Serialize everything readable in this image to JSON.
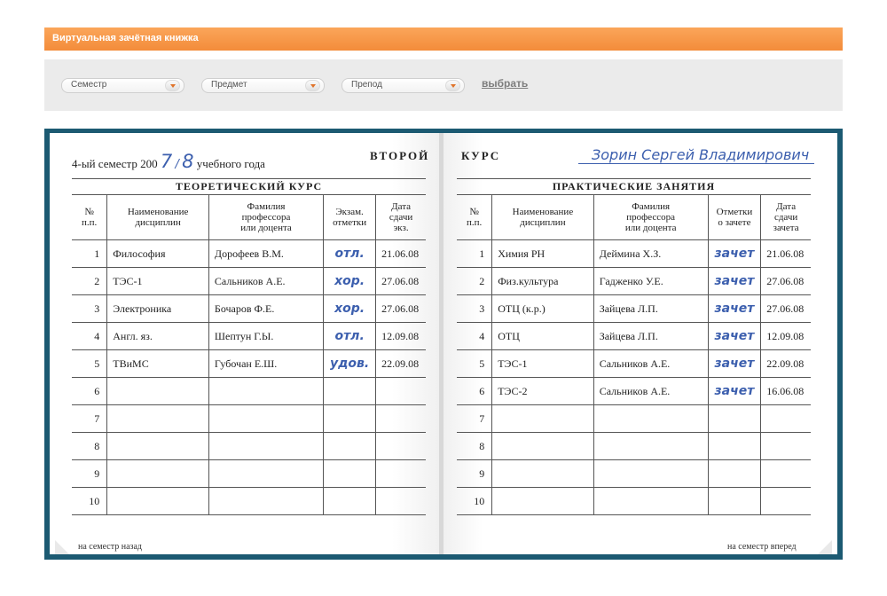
{
  "header": {
    "title": "Виртуальная зачётная книжка"
  },
  "filters": {
    "semester": "Семестр",
    "subject": "Предмет",
    "teacher": "Препод",
    "choose": "выбрать"
  },
  "book": {
    "semester_prefix": "4-ый семестр 200",
    "year_a": "7",
    "year_sep": "/",
    "year_b": "8",
    "year_suffix": "учебного года",
    "course_left": "ВТОРОЙ",
    "course_right": "КУРС",
    "student_name": "Зорин Сергей Владимирович",
    "prev_link": "на семестр назад",
    "next_link": "на семестр вперед"
  },
  "theory": {
    "section_title": "ТЕОРЕТИЧЕСКИЙ КУРС",
    "columns": [
      "№\nп.п.",
      "Наименование\nдисциплин",
      "Фамилия\nпрофессора\nили доцента",
      "Экзам.\nотметки",
      "Дата\nсдачи\nэкз."
    ],
    "rows": [
      {
        "n": "1",
        "subject": "Философия",
        "teacher": "Дорофеев В.М.",
        "mark": "отл.",
        "date": "21.06.08"
      },
      {
        "n": "2",
        "subject": "ТЭС-1",
        "teacher": "Сальников А.Е.",
        "mark": "хор.",
        "date": "27.06.08"
      },
      {
        "n": "3",
        "subject": "Электроника",
        "teacher": "Бочаров Ф.Е.",
        "mark": "хор.",
        "date": "27.06.08"
      },
      {
        "n": "4",
        "subject": "Англ. яз.",
        "teacher": "Шептун Г.Ы.",
        "mark": "отл.",
        "date": "12.09.08"
      },
      {
        "n": "5",
        "subject": "ТВиМС",
        "teacher": "Губочан Е.Ш.",
        "mark": "удов.",
        "date": "22.09.08"
      },
      {
        "n": "6",
        "subject": "",
        "teacher": "",
        "mark": "",
        "date": ""
      },
      {
        "n": "7",
        "subject": "",
        "teacher": "",
        "mark": "",
        "date": ""
      },
      {
        "n": "8",
        "subject": "",
        "teacher": "",
        "mark": "",
        "date": ""
      },
      {
        "n": "9",
        "subject": "",
        "teacher": "",
        "mark": "",
        "date": ""
      },
      {
        "n": "10",
        "subject": "",
        "teacher": "",
        "mark": "",
        "date": ""
      }
    ]
  },
  "practice": {
    "section_title": "ПРАКТИЧЕСКИЕ ЗАНЯТИЯ",
    "columns": [
      "№\nп.п.",
      "Наименование\nдисциплин",
      "Фамилия\nпрофессора\nили доцента",
      "Отметки\nо зачете",
      "Дата\nсдачи\nзачета"
    ],
    "rows": [
      {
        "n": "1",
        "subject": "Химия РН",
        "teacher": "Деймина Х.З.",
        "mark": "зачет",
        "date": "21.06.08"
      },
      {
        "n": "2",
        "subject": "Физ.культура",
        "teacher": "Гадженко У.Е.",
        "mark": "зачет",
        "date": "27.06.08"
      },
      {
        "n": "3",
        "subject": "ОТЦ (к.р.)",
        "teacher": "Зайцева Л.П.",
        "mark": "зачет",
        "date": "27.06.08"
      },
      {
        "n": "4",
        "subject": "ОТЦ",
        "teacher": "Зайцева Л.П.",
        "mark": "зачет",
        "date": "12.09.08"
      },
      {
        "n": "5",
        "subject": "ТЭС-1",
        "teacher": "Сальников А.Е.",
        "mark": "зачет",
        "date": "22.09.08"
      },
      {
        "n": "6",
        "subject": "ТЭС-2",
        "teacher": "Сальников А.Е.",
        "mark": "зачет",
        "date": "16.06.08"
      },
      {
        "n": "7",
        "subject": "",
        "teacher": "",
        "mark": "",
        "date": ""
      },
      {
        "n": "8",
        "subject": "",
        "teacher": "",
        "mark": "",
        "date": ""
      },
      {
        "n": "9",
        "subject": "",
        "teacher": "",
        "mark": "",
        "date": ""
      },
      {
        "n": "10",
        "subject": "",
        "teacher": "",
        "mark": "",
        "date": ""
      }
    ]
  }
}
